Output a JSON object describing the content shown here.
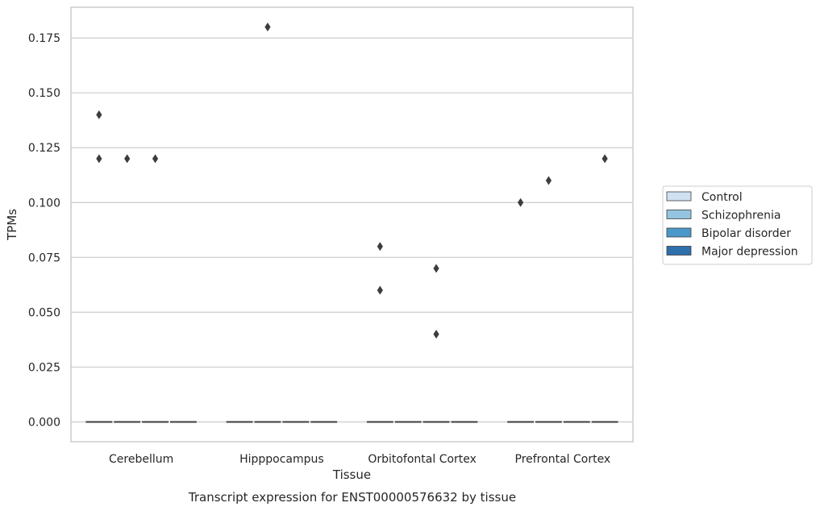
{
  "chart_data": {
    "type": "box",
    "xlabel": "Tissue",
    "ylabel": "TPMs",
    "caption": "Transcript expression for ENST00000576632 by tissue",
    "ylim": [
      -0.009,
      0.189
    ],
    "yticks": [
      "0.000",
      "0.025",
      "0.050",
      "0.075",
      "0.100",
      "0.125",
      "0.150",
      "0.175"
    ],
    "ytick_values": [
      0,
      0.025,
      0.05,
      0.075,
      0.1,
      0.125,
      0.15,
      0.175
    ],
    "grid": true,
    "legend_position": "right",
    "categories": [
      "Cerebellum",
      "Hipppocampus",
      "Orbitofontal Cortex",
      "Prefrontal Cortex"
    ],
    "series": [
      {
        "name": "Control",
        "color": "#d0e1f2",
        "median": [
          0,
          0,
          0,
          0
        ],
        "outliers": [
          [
            0.14,
            0.12
          ],
          [],
          [
            0.08,
            0.06
          ],
          [
            0.1
          ]
        ]
      },
      {
        "name": "Schizophrenia",
        "color": "#94c4df",
        "median": [
          0,
          0,
          0,
          0
        ],
        "outliers": [
          [
            0.12
          ],
          [
            0.18
          ],
          [],
          [
            0.11
          ]
        ]
      },
      {
        "name": "Bipolar disorder",
        "color": "#4a98c9",
        "median": [
          0,
          0,
          0,
          0
        ],
        "outliers": [
          [
            0.12
          ],
          [],
          [
            0.07,
            0.04
          ],
          []
        ]
      },
      {
        "name": "Major depression",
        "color": "#2e6fac",
        "median": [
          0,
          0,
          0,
          0
        ],
        "outliers": [
          [],
          [],
          [],
          [
            0.12
          ]
        ]
      }
    ]
  }
}
